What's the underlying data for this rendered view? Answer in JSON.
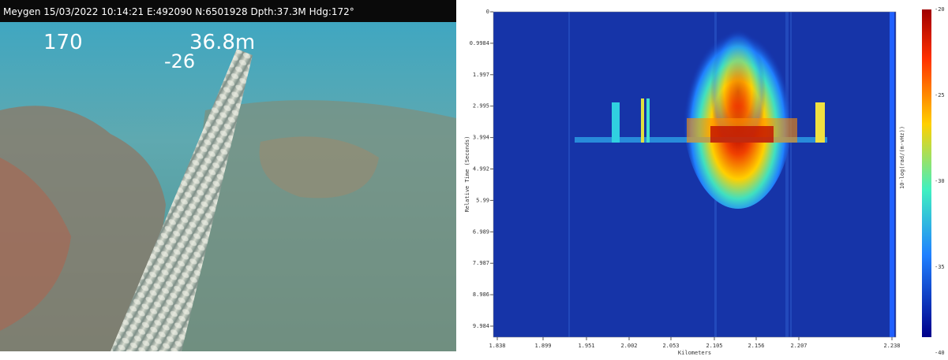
{
  "video": {
    "header": "Meygen  15/03/2022 10:14:21 E:492090 N:6501928 Dpth:37.3M Hdg:172°",
    "heading": "170",
    "depth": "36.8m",
    "pitch": "-26"
  },
  "waterfall": {
    "y_label": "Relative Time (Seconds)",
    "y_ticks": [
      "0",
      "0.9984",
      "1.997",
      "2.995",
      "3.994",
      "4.992",
      "5.99",
      "6.989",
      "7.987",
      "8.986",
      "9.984"
    ],
    "x_label": "Kilometers",
    "x_ticks": [
      "1.838",
      "1.899",
      "1.951",
      "2.002",
      "2.053",
      "2.105",
      "2.156",
      "2.207",
      "2.238"
    ],
    "colorbar_label": "10-log(rad/(m-vHz))",
    "colorbar_ticks": [
      "-20",
      "-25",
      "-30",
      "-35",
      "-40"
    ]
  }
}
